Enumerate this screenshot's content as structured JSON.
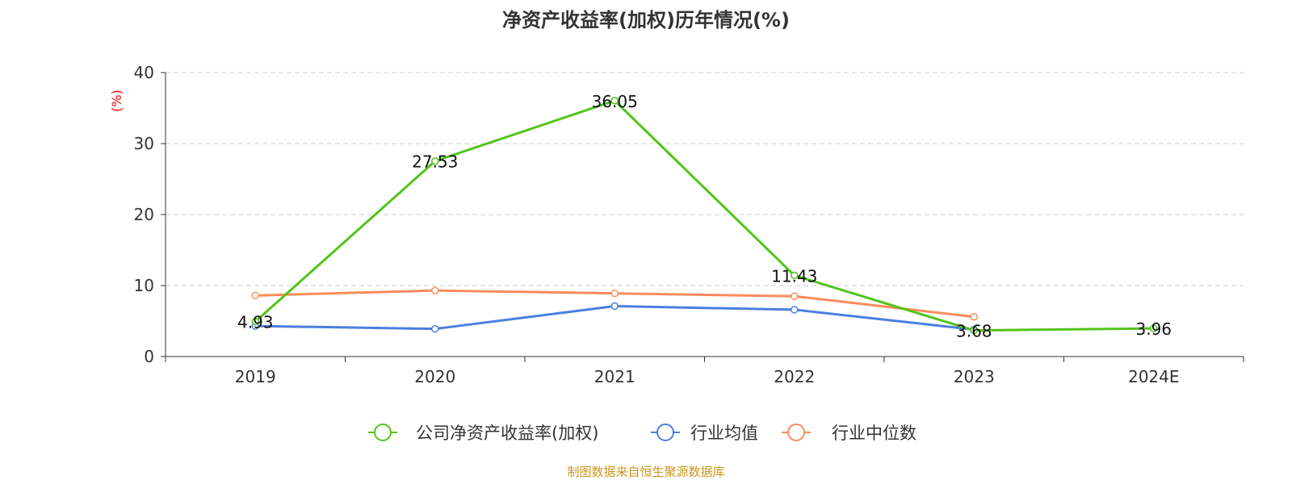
{
  "chart_data": {
    "type": "line",
    "title": "净资产收益率(加权)历年情况(%)",
    "ylabel": "(%)",
    "xlabel": "",
    "categories": [
      "2019",
      "2020",
      "2021",
      "2022",
      "2023",
      "2024E"
    ],
    "ylim": [
      0,
      40
    ],
    "yticks": [
      0,
      10,
      20,
      30,
      40
    ],
    "grid": true,
    "legend_position": "bottom",
    "series": [
      {
        "name": "公司净资产收益率(加权)",
        "color": "#52c41a",
        "values": [
          4.93,
          27.53,
          36.05,
          11.43,
          3.68,
          3.96
        ],
        "labels": [
          "4.93",
          "27.53",
          "36.05",
          "11.43",
          "3.68",
          "3.96"
        ]
      },
      {
        "name": "行业均值",
        "color": "#4a7fe0",
        "values": [
          4.3,
          3.9,
          7.1,
          6.6,
          3.8,
          null
        ]
      },
      {
        "name": "行业中位数",
        "color": "#fa8c5a",
        "values": [
          8.6,
          9.3,
          8.9,
          8.5,
          5.6,
          null
        ]
      }
    ],
    "source": "制图数据来自恒生聚源数据库"
  }
}
